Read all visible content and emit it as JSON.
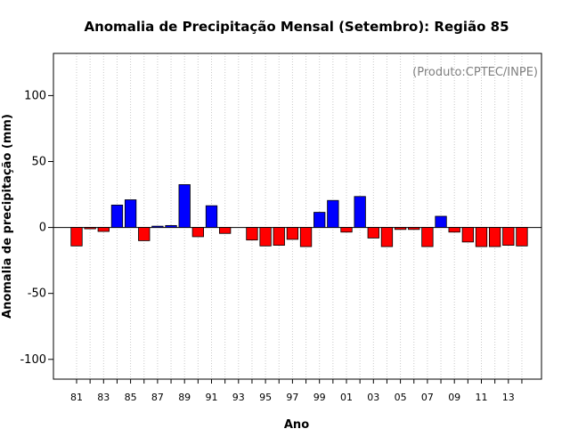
{
  "chart_data": {
    "type": "bar",
    "title": "Anomalia de Precipitação Mensal (Setembro): Região 85",
    "xlabel": "Ano",
    "ylabel": "Anomalia de precipitação (mm)",
    "annotation": "(Produto:CPTEC/INPE)",
    "ylim": [
      -115,
      132
    ],
    "yticks": [
      -100,
      -50,
      0,
      50,
      100
    ],
    "grid": "vertical-dotted",
    "colors": {
      "positive": "#0000ff",
      "negative": "#ff0000",
      "grid": "#c8c8c8"
    },
    "categories": [
      "81",
      "82",
      "83",
      "84",
      "85",
      "86",
      "87",
      "88",
      "89",
      "90",
      "91",
      "92",
      "93",
      "94",
      "95",
      "96",
      "97",
      "98",
      "99",
      "00",
      "01",
      "02",
      "03",
      "04",
      "05",
      "06",
      "07",
      "08",
      "09",
      "10",
      "11",
      "12",
      "13",
      "14"
    ],
    "tick_labels": [
      "81",
      "83",
      "85",
      "87",
      "89",
      "91",
      "93",
      "95",
      "97",
      "99",
      "01",
      "03",
      "05",
      "07",
      "09",
      "11",
      "13"
    ],
    "values": [
      -14,
      -1,
      -3,
      17,
      21,
      -10,
      1,
      1.5,
      32.5,
      -7,
      16.5,
      -4.5,
      0,
      -9.5,
      -14,
      -13.5,
      -9,
      -14.5,
      11.5,
      20.5,
      -3.5,
      23.5,
      -8,
      -14.5,
      -1.5,
      -1.5,
      -14.5,
      8.5,
      -3.5,
      -11,
      -14.5,
      -14.5,
      -13.5,
      -14
    ]
  }
}
